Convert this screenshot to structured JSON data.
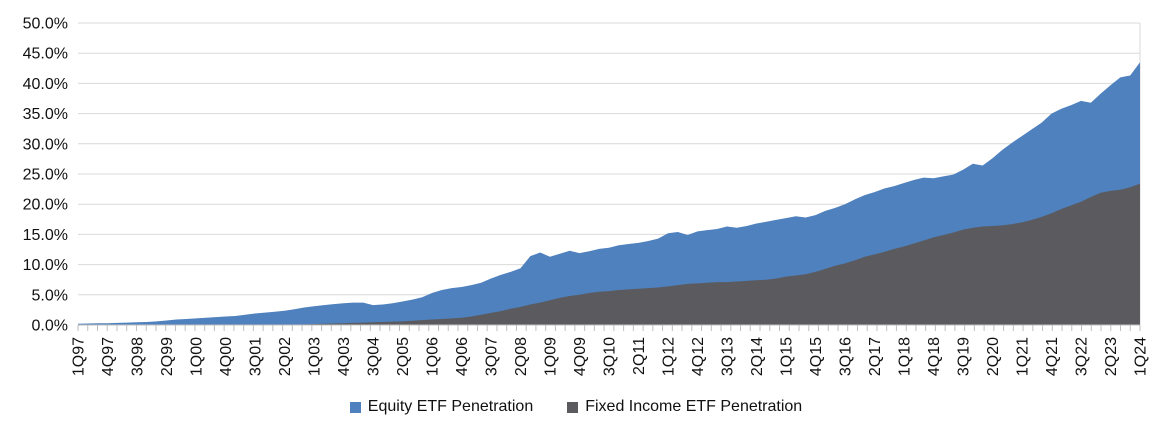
{
  "chart_data": {
    "type": "area",
    "title": "",
    "xlabel": "",
    "ylabel": "",
    "ylim": [
      0,
      50
    ],
    "y_tick_step": 5,
    "y_tick_labels": [
      "0.0%",
      "5.0%",
      "10.0%",
      "15.0%",
      "20.0%",
      "25.0%",
      "30.0%",
      "35.0%",
      "40.0%",
      "45.0%",
      "50.0%"
    ],
    "x_tick_labels": [
      "1Q97",
      "4Q97",
      "3Q98",
      "2Q99",
      "1Q00",
      "4Q00",
      "3Q01",
      "2Q02",
      "1Q03",
      "4Q03",
      "3Q04",
      "2Q05",
      "1Q06",
      "4Q06",
      "3Q07",
      "2Q08",
      "1Q09",
      "4Q09",
      "3Q10",
      "2Q11",
      "1Q12",
      "4Q12",
      "3Q13",
      "2Q14",
      "1Q15",
      "4Q15",
      "3Q16",
      "2Q17",
      "1Q18",
      "4Q18",
      "3Q19",
      "2Q20",
      "1Q21",
      "4Q21",
      "3Q22",
      "2Q23",
      "1Q24"
    ],
    "x_points_per_labeled_tick": 3,
    "grid": "horizontal",
    "legend_position": "bottom-center",
    "overlapping_areas_from_zero_baseline": true,
    "series": [
      {
        "name": "Equity ETF Penetration",
        "color": "#4E81BD",
        "values": [
          0.2,
          0.25,
          0.3,
          0.3,
          0.35,
          0.4,
          0.45,
          0.5,
          0.6,
          0.75,
          0.9,
          1.0,
          1.1,
          1.2,
          1.3,
          1.4,
          1.5,
          1.7,
          1.9,
          2.05,
          2.2,
          2.35,
          2.6,
          2.9,
          3.1,
          3.3,
          3.45,
          3.6,
          3.7,
          3.7,
          3.3,
          3.4,
          3.6,
          3.9,
          4.2,
          4.6,
          5.3,
          5.8,
          6.1,
          6.3,
          6.6,
          7.0,
          7.7,
          8.3,
          8.8,
          9.4,
          11.4,
          12.0,
          11.3,
          11.8,
          12.3,
          11.9,
          12.2,
          12.6,
          12.8,
          13.2,
          13.4,
          13.6,
          13.9,
          14.3,
          15.2,
          15.4,
          14.9,
          15.5,
          15.7,
          15.9,
          16.3,
          16.1,
          16.4,
          16.8,
          17.1,
          17.4,
          17.7,
          18.0,
          17.8,
          18.2,
          18.9,
          19.4,
          20.0,
          20.8,
          21.5,
          22.0,
          22.6,
          23.0,
          23.5,
          24.0,
          24.4,
          24.3,
          24.6,
          24.9,
          25.7,
          26.7,
          26.4,
          27.6,
          29.0,
          30.2,
          31.3,
          32.4,
          33.5,
          35.0,
          35.8,
          36.4,
          37.1,
          36.8,
          38.3,
          39.7,
          41.0,
          41.3,
          43.5
        ]
      },
      {
        "name": "Fixed Income ETF Penetration",
        "color": "#5B5B5F",
        "values": [
          0,
          0,
          0,
          0,
          0,
          0,
          0,
          0,
          0,
          0,
          0,
          0,
          0,
          0,
          0,
          0,
          0,
          0,
          0,
          0,
          0,
          0,
          0.05,
          0.1,
          0.15,
          0.2,
          0.25,
          0.3,
          0.35,
          0.4,
          0.45,
          0.5,
          0.55,
          0.6,
          0.7,
          0.8,
          0.9,
          1.0,
          1.1,
          1.2,
          1.4,
          1.7,
          2.0,
          2.3,
          2.7,
          3.0,
          3.4,
          3.7,
          4.1,
          4.5,
          4.8,
          5.0,
          5.3,
          5.5,
          5.6,
          5.8,
          5.9,
          6.0,
          6.1,
          6.2,
          6.4,
          6.6,
          6.8,
          6.9,
          7.0,
          7.1,
          7.1,
          7.2,
          7.3,
          7.4,
          7.5,
          7.7,
          8.0,
          8.2,
          8.4,
          8.8,
          9.3,
          9.8,
          10.2,
          10.7,
          11.3,
          11.7,
          12.1,
          12.6,
          13.0,
          13.5,
          14.0,
          14.5,
          14.9,
          15.3,
          15.8,
          16.1,
          16.3,
          16.4,
          16.5,
          16.7,
          17.0,
          17.4,
          17.9,
          18.5,
          19.2,
          19.8,
          20.4,
          21.2,
          21.9,
          22.2,
          22.4,
          22.8,
          23.4
        ]
      }
    ],
    "colors": {
      "gridline": "#D9D9D9",
      "axis": "#BFBFBF",
      "tick": "#BFBFBF",
      "text": "#111111",
      "background": "#FFFFFF"
    }
  },
  "legend": {
    "items": [
      {
        "label": "Equity ETF Penetration",
        "color": "#4E81BD"
      },
      {
        "label": "Fixed Income ETF Penetration",
        "color": "#5B5B5F"
      }
    ]
  }
}
